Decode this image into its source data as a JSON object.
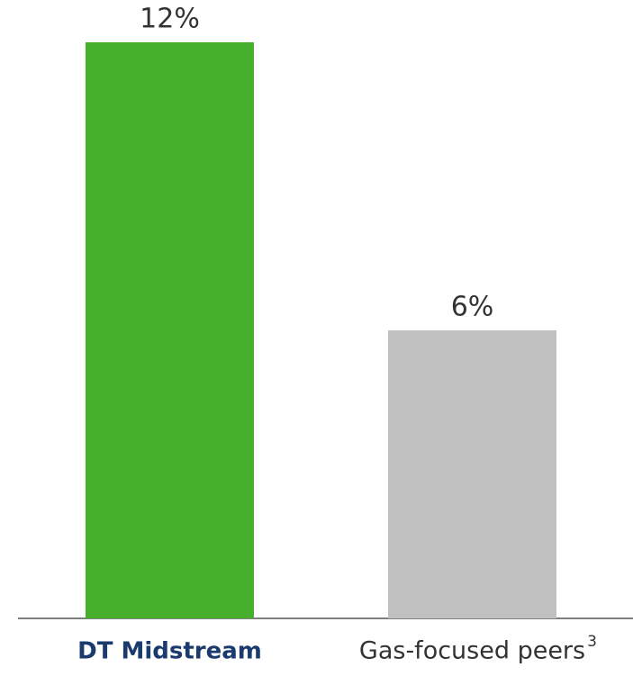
{
  "chart_data": {
    "type": "bar",
    "categories": [
      "DT Midstream",
      "Gas-focused peers"
    ],
    "category_notes": [
      null,
      "3"
    ],
    "values": [
      12,
      6
    ],
    "value_labels": [
      "12%",
      "6%"
    ],
    "colors": [
      "#46b02c",
      "#c0c0c0"
    ]
  }
}
